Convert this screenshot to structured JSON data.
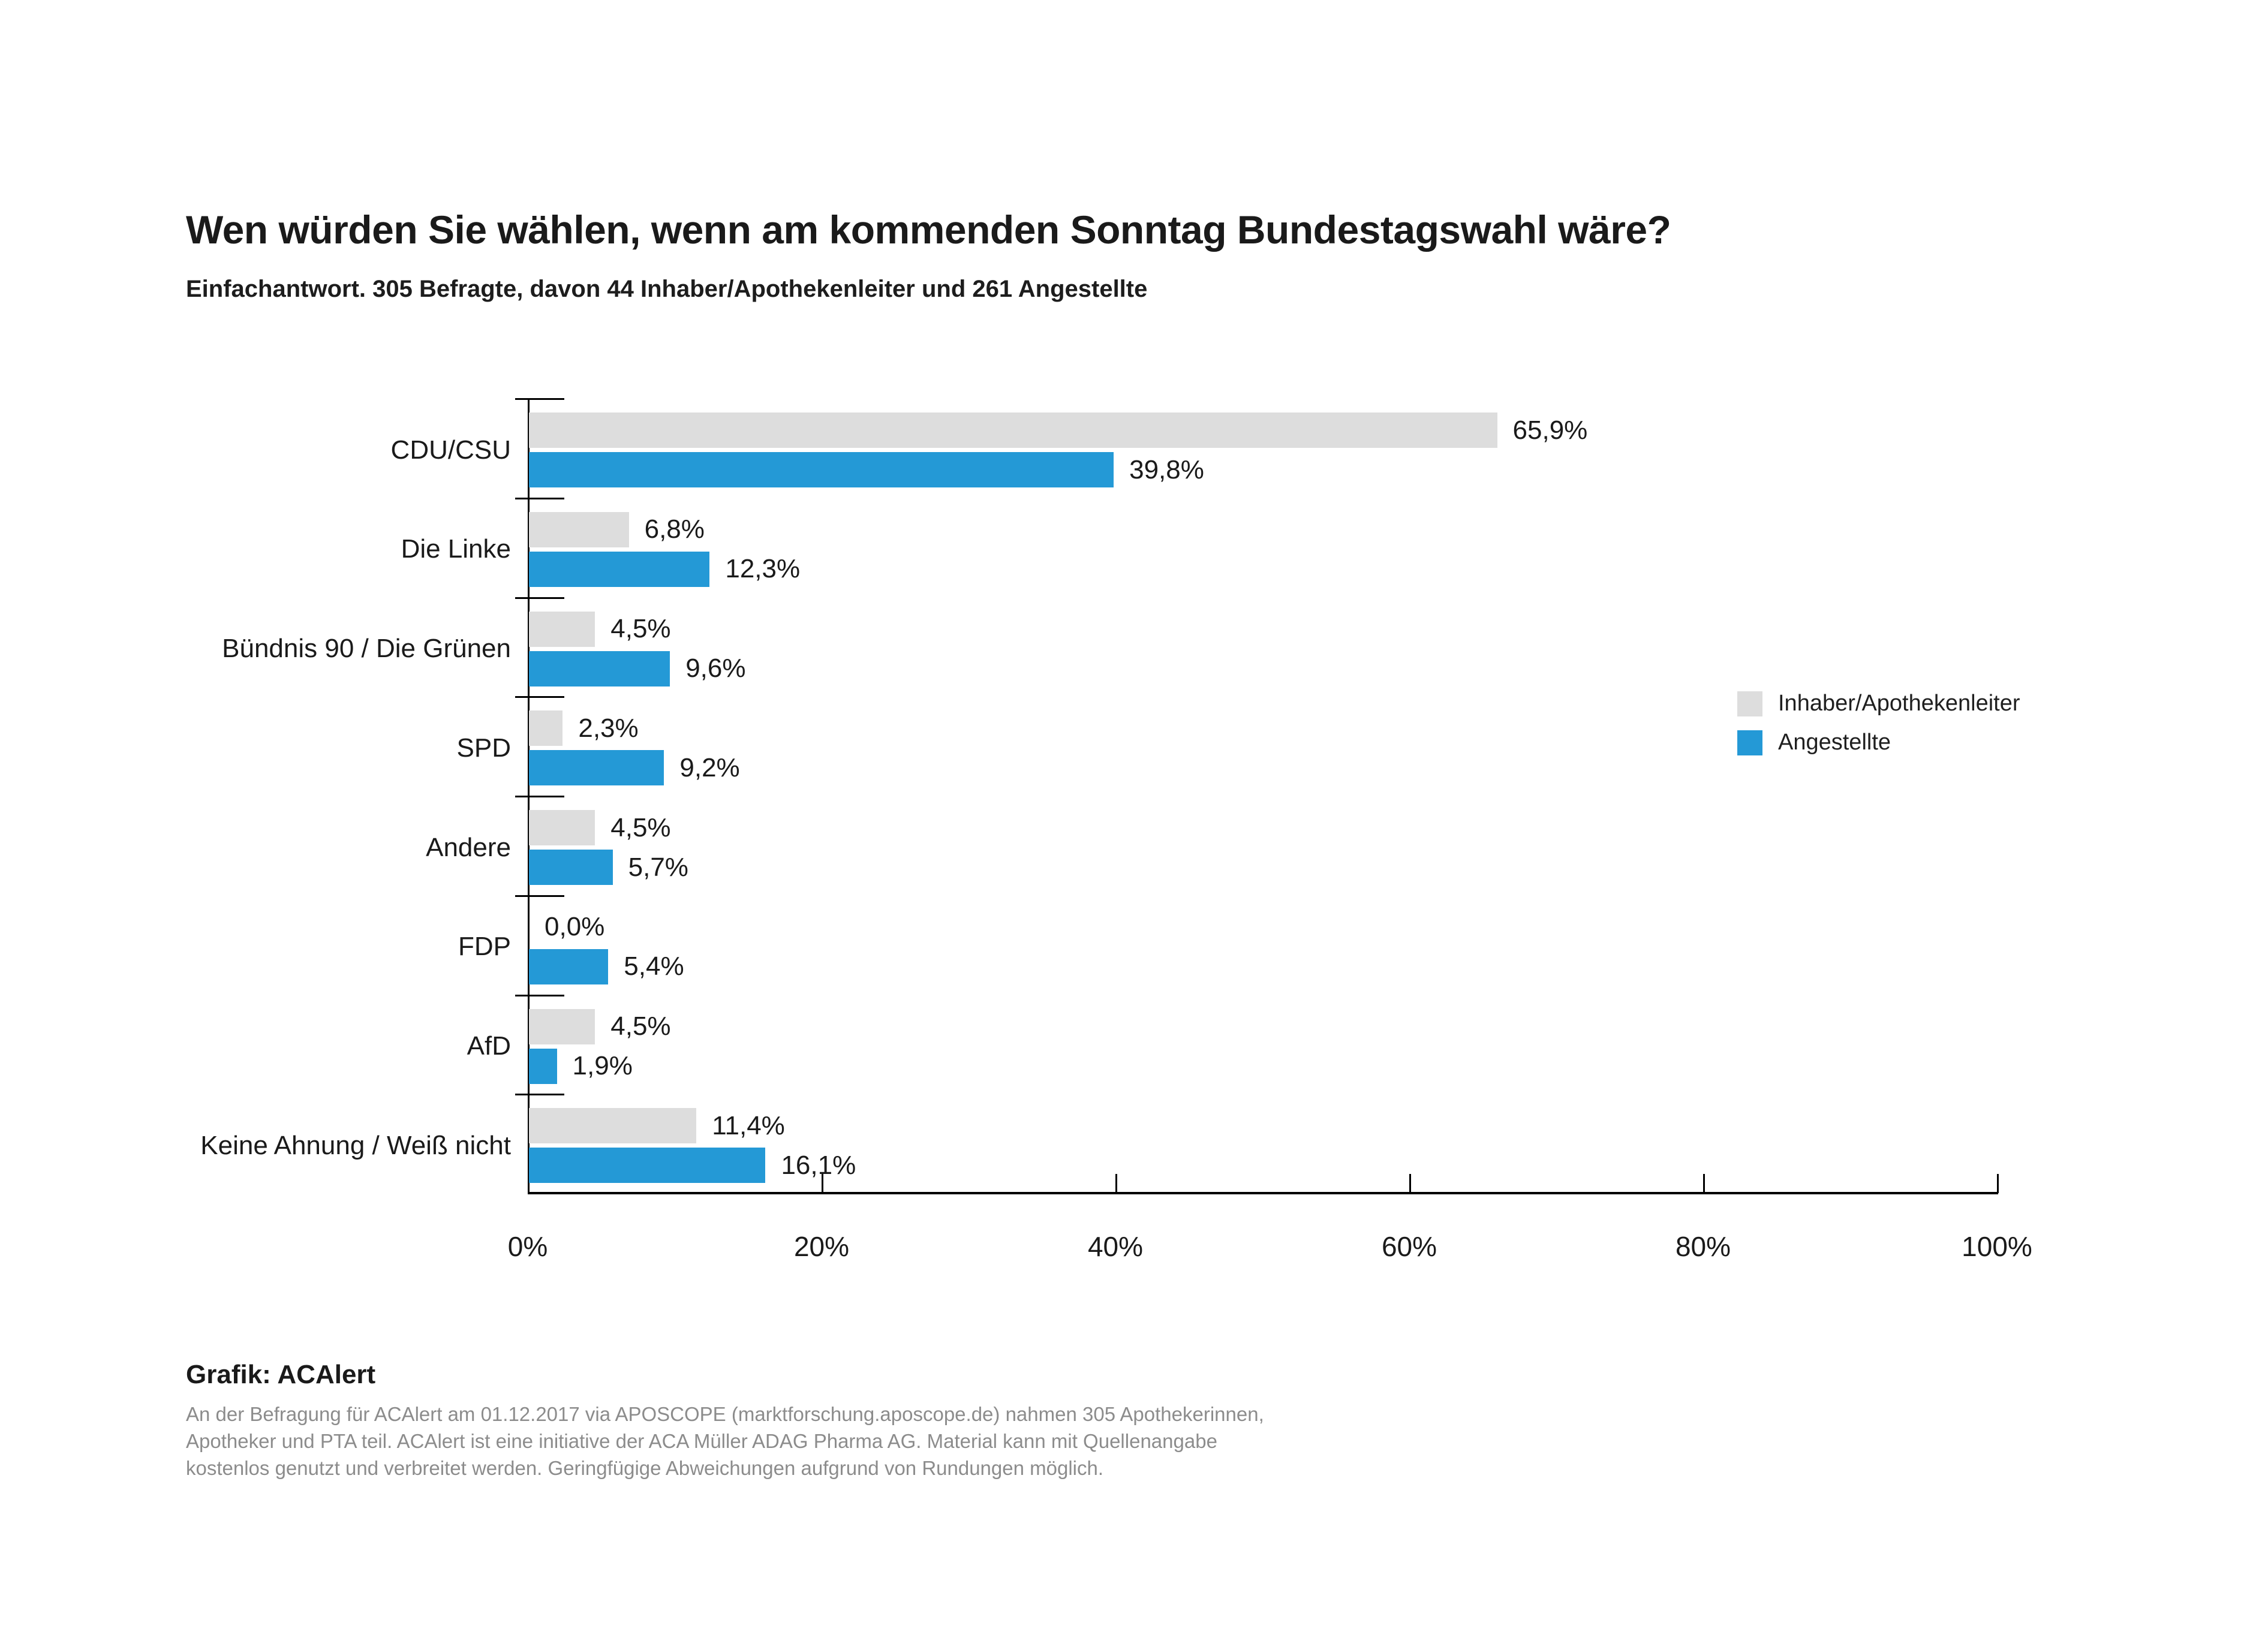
{
  "header": {
    "title": "Wen würden Sie wählen, wenn am kommenden Sonntag Bundestagswahl wäre?",
    "subtitle": "Einfachantwort. 305 Befragte, davon 44 Inhaber/Apothekenleiter und 261 Angestellte"
  },
  "legend": {
    "items": [
      {
        "label": "Inhaber/Apothekenleiter",
        "color": "#dddddd"
      },
      {
        "label": "Angestellte",
        "color": "#2499d6"
      }
    ]
  },
  "chart_data": {
    "type": "bar",
    "orientation": "horizontal",
    "title": "Wen würden Sie wählen, wenn am kommenden Sonntag Bundestagswahl wäre?",
    "subtitle": "Einfachantwort. 305 Befragte, davon 44 Inhaber/Apothekenleiter und 261 Angestellte",
    "categories": [
      "CDU/CSU",
      "Die Linke",
      "Bündnis 90 / Die Grünen",
      "SPD",
      "Andere",
      "FDP",
      "AfD",
      "Keine Ahnung / Weiß nicht"
    ],
    "series": [
      {
        "name": "Inhaber/Apothekenleiter",
        "color": "#dddddd",
        "values": [
          65.9,
          6.8,
          4.5,
          2.3,
          4.5,
          0.0,
          4.5,
          11.4
        ],
        "labels": [
          "65,9%",
          "6,8%",
          "4,5%",
          "2,3%",
          "4,5%",
          "0,0%",
          "4,5%",
          "11,4%"
        ]
      },
      {
        "name": "Angestellte",
        "color": "#2499d6",
        "values": [
          39.8,
          12.3,
          9.6,
          9.2,
          5.7,
          5.4,
          1.9,
          16.1
        ],
        "labels": [
          "39,8%",
          "12,3%",
          "9,6%",
          "9,2%",
          "5,7%",
          "5,4%",
          "1,9%",
          "16,1%"
        ]
      }
    ],
    "xlabel": "",
    "ylabel": "",
    "xlim": [
      0,
      100
    ],
    "x_axis": {
      "tick_labels": [
        "0%",
        "20%",
        "40%",
        "60%",
        "80%",
        "100%"
      ],
      "tick_values": [
        0,
        20,
        40,
        60,
        80,
        100
      ]
    },
    "grid": false,
    "legend_position": "right",
    "axis_color": "#000000",
    "label_color": "#1a1a1a"
  },
  "footer": {
    "credit": "Grafik: ACAlert",
    "note_lines": [
      "An der Befragung für ACAlert am 01.12.2017 via APOSCOPE (marktforschung.aposcope.de) nahmen 305 Apothekerinnen,",
      "Apotheker und PTA teil. ACAlert ist eine initiative der ACA Müller ADAG Pharma AG. Material kann mit Quellenangabe",
      "kostenlos genutzt und verbreitet werden. Geringfügige Abweichungen aufgrund von Rundungen möglich."
    ]
  }
}
